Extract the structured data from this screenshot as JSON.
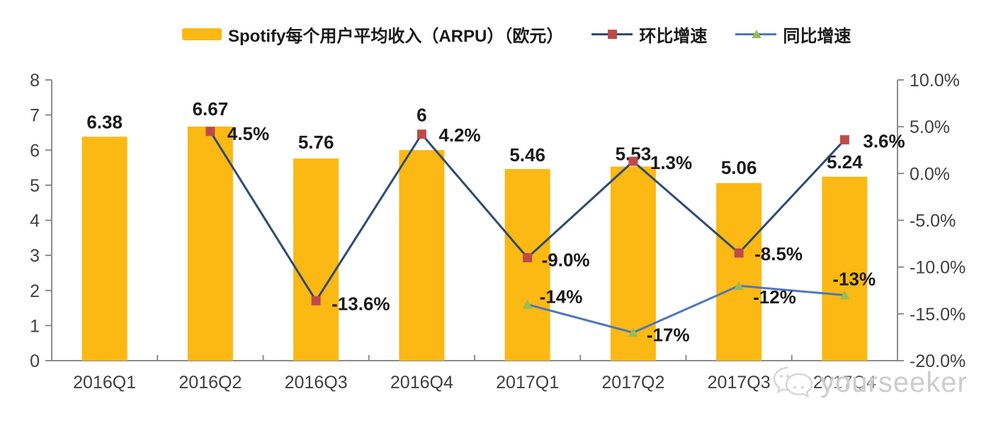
{
  "legend": {
    "items": [
      {
        "label": "Spotify每个用户平均收入（ARPU）（欧元）",
        "swatch": "bar"
      },
      {
        "label": "环比增速",
        "swatch": "line-square"
      },
      {
        "label": "同比增速",
        "swatch": "line-triangle"
      }
    ]
  },
  "watermark": {
    "text": "yourseeker",
    "icon": "wechat-logo-icon"
  },
  "colors": {
    "bar": "#FCB813",
    "qoq_line": "#2E4B73",
    "qoq_marker": "#BE4B48",
    "yoy_line": "#4C77BE",
    "yoy_marker": "#9CBB58",
    "axis": "#8C8C8C",
    "axis_text": "#3F3F3F",
    "label_text": "#1A1A1A",
    "watermark_text": "#CCCCCC"
  },
  "chart_data": {
    "type": "combo",
    "categories": [
      "2016Q1",
      "2016Q2",
      "2016Q3",
      "2016Q4",
      "2017Q1",
      "2017Q2",
      "2017Q3",
      "2017Q4"
    ],
    "series": [
      {
        "name": "Spotify每个用户平均收入（ARPU）（欧元）",
        "type": "bar",
        "axis": "left",
        "values": [
          6.38,
          6.67,
          5.76,
          6,
          5.46,
          5.53,
          5.06,
          5.24
        ],
        "labels": [
          "6.38",
          "6.67",
          "5.76",
          "6",
          "5.46",
          "5.53",
          "5.06",
          "5.24"
        ]
      },
      {
        "name": "环比增速",
        "type": "line",
        "axis": "right",
        "marker": "square",
        "values": [
          null,
          4.5,
          -13.6,
          4.2,
          -9.0,
          1.3,
          -8.5,
          3.6
        ],
        "labels": [
          null,
          "4.5%",
          "-13.6%",
          "4.2%",
          "-9.0%",
          "1.3%",
          "-8.5%",
          "3.6%"
        ]
      },
      {
        "name": "同比增速",
        "type": "line",
        "axis": "right",
        "marker": "triangle",
        "values": [
          null,
          null,
          null,
          null,
          -14,
          -17,
          -12,
          -13
        ],
        "labels": [
          null,
          null,
          null,
          null,
          "-14%",
          "-17%",
          "-12%",
          "-13%"
        ]
      }
    ],
    "left_axis": {
      "min": 0,
      "max": 8,
      "step": 1,
      "tick_labels": [
        "0",
        "1",
        "2",
        "3",
        "4",
        "5",
        "6",
        "7",
        "8"
      ]
    },
    "right_axis": {
      "min": -20,
      "max": 10,
      "step": 5,
      "tick_labels": [
        "10.0%",
        "5.0%",
        "0.0%",
        "-5.0%",
        "-10.0%",
        "-15.0%",
        "-20.0%"
      ]
    },
    "grid": false,
    "legend_position": "top",
    "layout_hints": {
      "bar_label_dy": [
        -12,
        -16,
        -14,
        -41,
        -11,
        -9,
        -13,
        -12
      ],
      "qoq_label_offsets": [
        null,
        [
          24,
          12
        ],
        [
          22,
          13
        ],
        [
          24,
          10
        ],
        [
          20,
          12
        ],
        [
          24,
          11
        ],
        [
          22,
          10
        ],
        [
          26,
          11
        ]
      ],
      "yoy_label_offsets": [
        null,
        null,
        null,
        null,
        [
          17,
          -2
        ],
        [
          19,
          12
        ],
        [
          20,
          25
        ],
        [
          -17,
          -14
        ]
      ]
    }
  }
}
